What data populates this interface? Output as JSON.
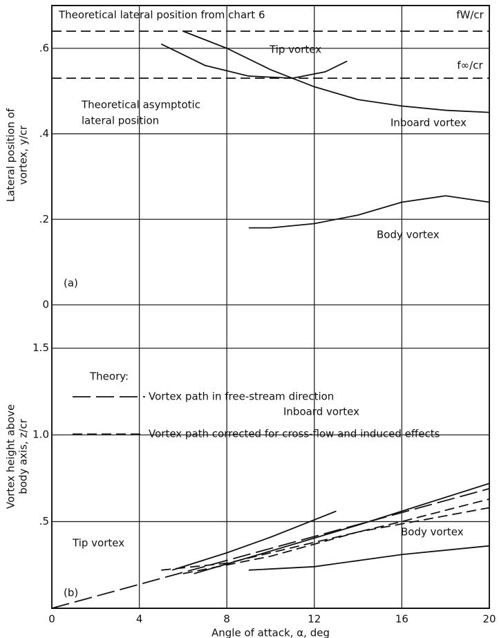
{
  "chart_data": [
    {
      "type": "line",
      "panel_label": "(a)",
      "ylabel": [
        "Lateral position of",
        "vortex, y/cr"
      ],
      "xlim": [
        0,
        20
      ],
      "ylim": [
        0,
        0.7
      ],
      "yticks": [
        0,
        {
          "value": 0.2,
          "label": ".2"
        },
        {
          "value": 0.4,
          "label": ".4"
        },
        {
          "value": 0.6,
          "label": ".6"
        }
      ],
      "grid": true,
      "annotations": [
        "Theoretical lateral position from chart 6",
        "Theoretical asymptotic",
        "lateral position"
      ],
      "series": [
        {
          "name": "Tip vortex",
          "style": "solid",
          "x": [
            5,
            7,
            9,
            11,
            12.5,
            13.5
          ],
          "y": [
            0.61,
            0.56,
            0.535,
            0.53,
            0.545,
            0.57
          ]
        },
        {
          "name": "Inboard vortex",
          "style": "solid",
          "x": [
            6,
            8,
            10,
            12,
            14,
            16,
            18,
            20
          ],
          "y": [
            0.64,
            0.6,
            0.55,
            0.51,
            0.48,
            0.465,
            0.455,
            0.45
          ]
        },
        {
          "name": "Body vortex",
          "style": "solid",
          "x": [
            9,
            10,
            12,
            14,
            16,
            18,
            20
          ],
          "y": [
            0.18,
            0.18,
            0.19,
            0.21,
            0.24,
            0.255,
            0.24
          ]
        },
        {
          "name": "fW/cr",
          "style": "dashed",
          "x": [
            0,
            20
          ],
          "y": [
            0.64,
            0.64
          ]
        },
        {
          "name": "f∞/cr",
          "style": "dashed",
          "x": [
            0,
            20
          ],
          "y": [
            0.53,
            0.53
          ]
        }
      ]
    },
    {
      "type": "line",
      "panel_label": "(b)",
      "ylabel": [
        "Vortex height above",
        "body axis, z/cr"
      ],
      "xlabel": "Angle of attack, α, deg",
      "xlim": [
        0,
        20
      ],
      "ylim": [
        0,
        1.75
      ],
      "xticks": [
        0,
        4,
        8,
        12,
        16,
        20
      ],
      "yticks": [
        {
          "value": 0.5,
          "label": ".5"
        },
        {
          "value": 1.0,
          "label": "1.0"
        },
        {
          "value": 1.5,
          "label": "1.5"
        }
      ],
      "grid": true,
      "legend_title": "Theory:",
      "series": [
        {
          "name": "Vortex path in free-stream direction",
          "style": "long-dashed",
          "legend": true,
          "x": [
            0,
            20
          ],
          "y": [
            0,
            0.69
          ]
        },
        {
          "name": "Vortex path corrected for cross-flow and induced effects",
          "style": "dashed",
          "legend": true,
          "x": [
            5,
            8,
            12,
            16,
            20
          ],
          "y": [
            0.22,
            0.26,
            0.38,
            0.5,
            0.63
          ]
        },
        {
          "style": "dashed",
          "x": [
            6,
            10,
            14,
            20
          ],
          "y": [
            0.2,
            0.3,
            0.44,
            0.58
          ]
        },
        {
          "name": "Tip vortex",
          "style": "solid",
          "x": [
            5.5,
            8,
            10,
            13
          ],
          "y": [
            0.22,
            0.32,
            0.41,
            0.56
          ]
        },
        {
          "name": "Inboard vortex",
          "style": "solid",
          "x": [
            6.5,
            10,
            14,
            17,
            20
          ],
          "y": [
            0.2,
            0.33,
            0.48,
            0.6,
            0.72
          ]
        },
        {
          "name": "Body vortex",
          "style": "solid",
          "x": [
            9,
            12,
            16,
            20
          ],
          "y": [
            0.22,
            0.24,
            0.31,
            0.36
          ]
        }
      ]
    }
  ]
}
